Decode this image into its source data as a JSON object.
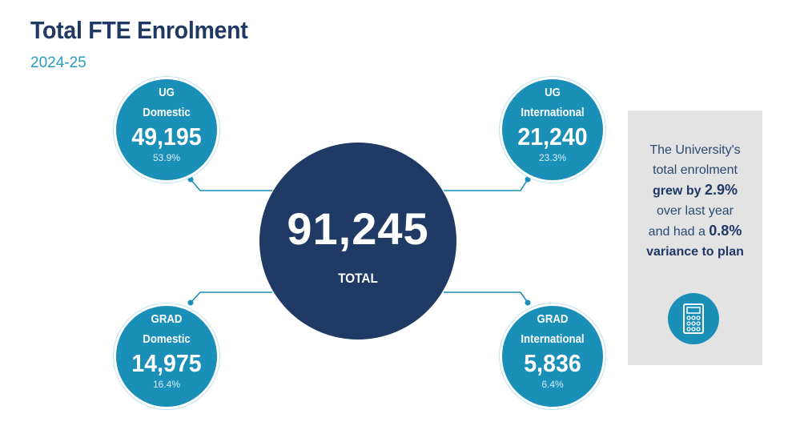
{
  "header": {
    "title": "Total FTE Enrolment",
    "subtitle": "2024-25"
  },
  "total": {
    "value": "91,245",
    "label": "TOTAL"
  },
  "segments": {
    "ug_domestic": {
      "line1": "UG",
      "line2": "Domestic",
      "value": "49,195",
      "pct": "53.9%"
    },
    "ug_international": {
      "line1": "UG",
      "line2": "International",
      "value": "21,240",
      "pct": "23.3%"
    },
    "grad_domestic": {
      "line1": "GRAD",
      "line2": "Domestic",
      "value": "14,975",
      "pct": "16.4%"
    },
    "grad_international": {
      "line1": "GRAD",
      "line2": "International",
      "value": "5,836",
      "pct": "6.4%"
    }
  },
  "panel": {
    "line1": "The University's",
    "line2": "total enrolment",
    "line3_prefix": "grew by ",
    "line3_value": "2.9%",
    "line4": "over last year",
    "line5_prefix": "and had a ",
    "line5_value": "0.8%",
    "line6": "variance to plan",
    "icon": "calculator-icon"
  },
  "colors": {
    "navy": "#1f3a64",
    "teal": "#1a8fb8",
    "panel_bg": "#e3e3e3"
  }
}
